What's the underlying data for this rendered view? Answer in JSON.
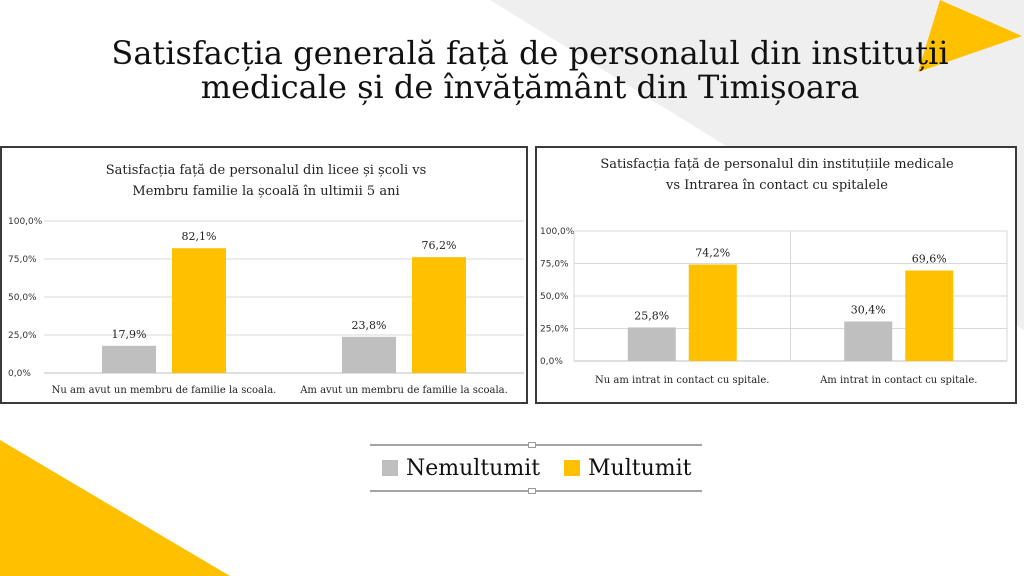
{
  "page": {
    "title_line1": "Satisfacția generală față de personalul din instituții",
    "title_line2": "medicale și de învățământ din Timișoara"
  },
  "colors": {
    "nemultumit": "#bfbfbf",
    "multumit": "#ffc000",
    "accent": "#ffc000",
    "decor_gray": "#efefef"
  },
  "legend": {
    "items": [
      {
        "label": "Nemultumit",
        "color": "#bfbfbf"
      },
      {
        "label": "Multumit",
        "color": "#ffc000"
      }
    ]
  },
  "chart_data": [
    {
      "type": "bar",
      "title_lines": [
        "Satisfacția față de personalul din licee și școli vs",
        "Membru  familie la școală în ultimii 5 ani"
      ],
      "categories": [
        "Nu am avut un membru de familie la scoala.",
        "Am avut un membru de familie la scoala."
      ],
      "series": [
        {
          "name": "Nemultumit",
          "values": [
            17.9,
            23.8
          ],
          "labels": [
            "17,9%",
            "23,8%"
          ]
        },
        {
          "name": "Multumit",
          "values": [
            82.1,
            76.2
          ],
          "labels": [
            "82,1%",
            "76,2%"
          ]
        }
      ],
      "y_ticks": [
        "0,0%",
        "25,0%",
        "50,0%",
        "75,0%",
        "100,0%"
      ],
      "ylim": [
        0,
        100
      ],
      "grid": true
    },
    {
      "type": "bar",
      "title_lines": [
        "Satisfacția față de personalul din instituțiile medicale",
        "vs Intrarea în contact cu spitalele"
      ],
      "categories": [
        "Nu am intrat in contact cu spitale.",
        "Am intrat in contact cu spitale."
      ],
      "series": [
        {
          "name": "Nemultumit",
          "values": [
            25.8,
            30.4
          ],
          "labels": [
            "25,8%",
            "30,4%"
          ]
        },
        {
          "name": "Multumit",
          "values": [
            74.2,
            69.6
          ],
          "labels": [
            "74,2%",
            "69,6%"
          ]
        }
      ],
      "y_ticks": [
        "0,0%",
        "25,0%",
        "50,0%",
        "75,0%",
        "100,0%"
      ],
      "ylim": [
        0,
        100
      ],
      "grid": true
    }
  ]
}
